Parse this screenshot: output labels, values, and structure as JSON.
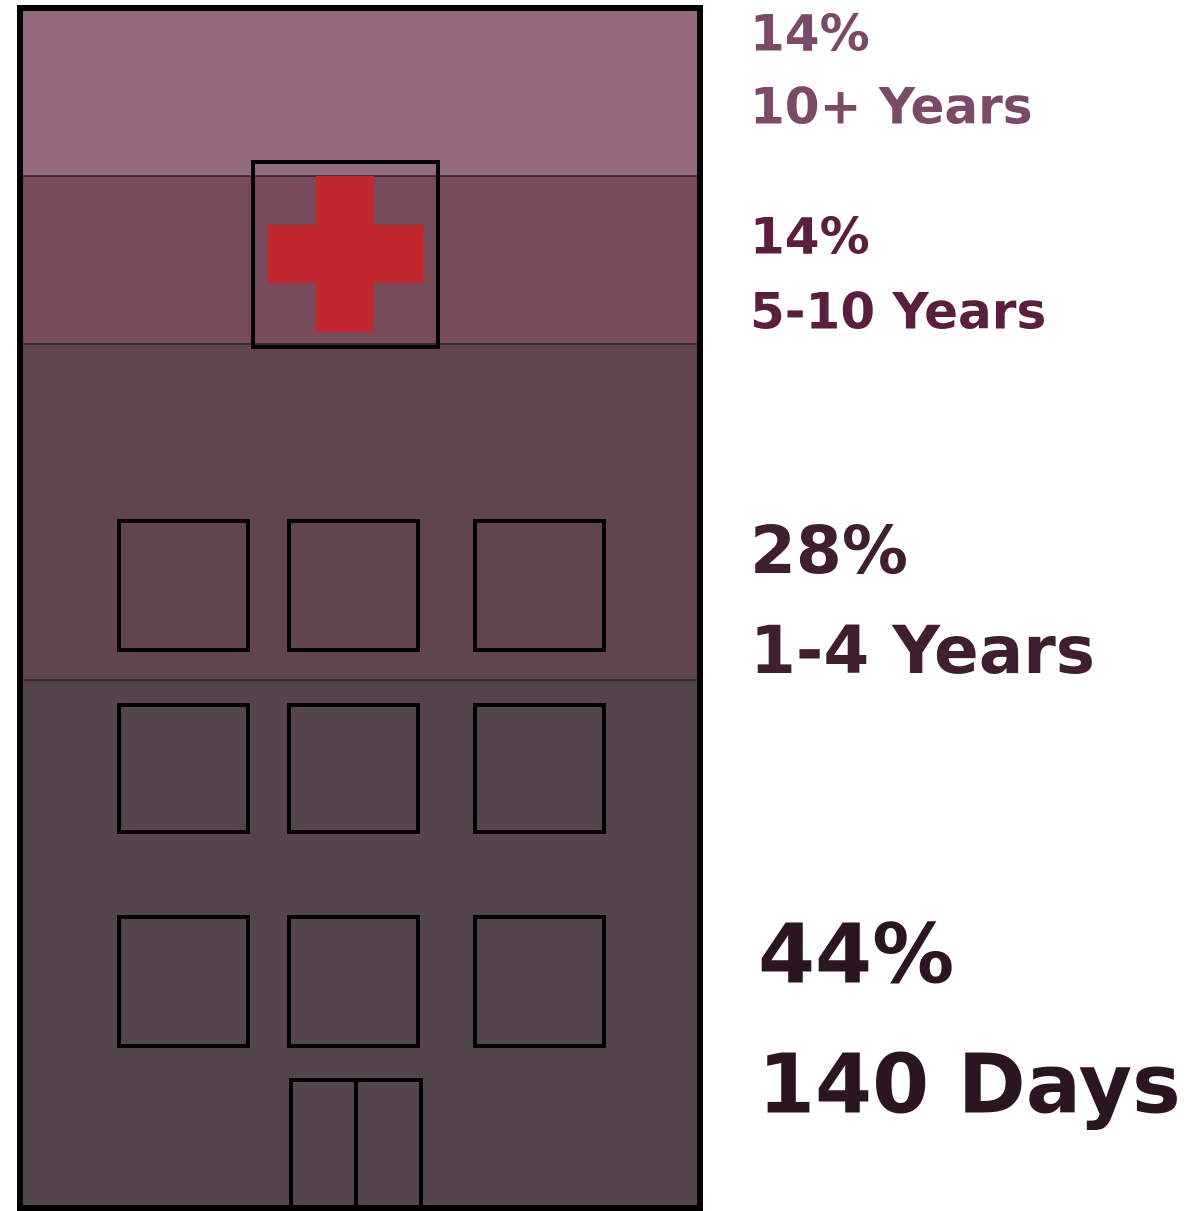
{
  "chart_data": {
    "type": "stack",
    "categories": [
      "10+ Years",
      "5-10 Years",
      "1-4 Years",
      "140 Days"
    ],
    "values": [
      14,
      14,
      28,
      44
    ],
    "value_labels": [
      "14%",
      "14%",
      "28%",
      "44%"
    ],
    "colors": [
      "#946b7d",
      "#774a5a",
      "#61454e",
      "#53454b"
    ],
    "label_colors": [
      "#7b4a66",
      "#5a1f3e",
      "#3f1f2e",
      "#2a1520"
    ]
  }
}
